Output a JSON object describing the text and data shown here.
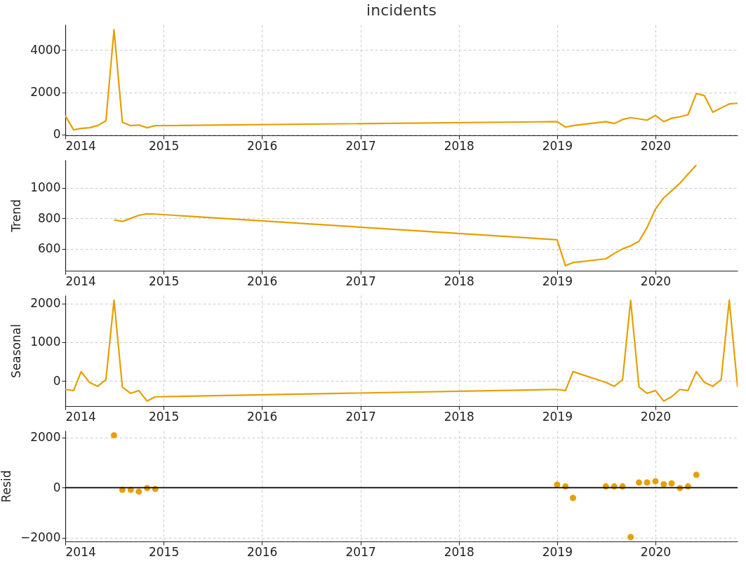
{
  "chart_data": [
    {
      "type": "line",
      "title": "incidents",
      "x": [
        "2014-01",
        "2014-02",
        "2014-03",
        "2014-04",
        "2014-05",
        "2014-06",
        "2014-07",
        "2014-08",
        "2014-09",
        "2014-10",
        "2014-11",
        "2014-12",
        "2019-01",
        "2019-02",
        "2019-03",
        "2019-07",
        "2019-08",
        "2019-09",
        "2019-10",
        "2019-11",
        "2019-12",
        "2020-01",
        "2020-02",
        "2020-03",
        "2020-04",
        "2020-05",
        "2020-06",
        "2020-07",
        "2020-08",
        "2020-09",
        "2020-10",
        "2020-11"
      ],
      "series": [
        {
          "color": "#e69f00",
          "values": [
            900,
            220,
            290,
            320,
            420,
            650,
            4970,
            580,
            420,
            450,
            320,
            420,
            610,
            350,
            420,
            610,
            520,
            710,
            800,
            740,
            680,
            900,
            610,
            770,
            840,
            940,
            1940,
            1840,
            1060,
            1260,
            1450,
            1480
          ]
        }
      ],
      "xlim": [
        "2014-01-01",
        "2020-11-01"
      ],
      "xticks": [
        "2014",
        "2015",
        "2016",
        "2017",
        "2018",
        "2019",
        "2020"
      ],
      "ylim": [
        -40,
        5210
      ],
      "yticks": [
        0,
        2000,
        4000
      ],
      "grid": true,
      "line_style": "solid"
    },
    {
      "type": "line",
      "ylabel": "Trend",
      "x": [
        "2014-07",
        "2014-08",
        "2014-09",
        "2014-10",
        "2014-11",
        "2014-12",
        "2019-01",
        "2019-02",
        "2019-03",
        "2019-07",
        "2019-08",
        "2019-09",
        "2019-10",
        "2019-11",
        "2019-12",
        "2020-01",
        "2020-02",
        "2020-03",
        "2020-04",
        "2020-05",
        "2020-06"
      ],
      "series": [
        {
          "color": "#e69f00",
          "values": [
            790,
            780,
            800,
            820,
            830,
            828,
            660,
            490,
            510,
            535,
            570,
            600,
            620,
            650,
            740,
            860,
            935,
            980,
            1030,
            1090,
            1150
          ]
        }
      ],
      "xlim": [
        "2014-01-01",
        "2020-11-01"
      ],
      "xticks": [
        "2014",
        "2015",
        "2016",
        "2017",
        "2018",
        "2019",
        "2020"
      ],
      "ylim": [
        457,
        1183
      ],
      "yticks": [
        600,
        800,
        1000
      ],
      "grid": true,
      "line_style": "solid"
    },
    {
      "type": "line",
      "ylabel": "Seasonal",
      "x": [
        "2014-01",
        "2014-02",
        "2014-03",
        "2014-04",
        "2014-05",
        "2014-06",
        "2014-07",
        "2014-08",
        "2014-09",
        "2014-10",
        "2014-11",
        "2014-12",
        "2019-01",
        "2019-02",
        "2019-03",
        "2019-07",
        "2019-08",
        "2019-09",
        "2019-10",
        "2019-11",
        "2019-12",
        "2020-01",
        "2020-02",
        "2020-03",
        "2020-04",
        "2020-05",
        "2020-06",
        "2020-07",
        "2020-08",
        "2020-09",
        "2020-10",
        "2020-11"
      ],
      "series": [
        {
          "color": "#e69f00",
          "values": [
            -220,
            -250,
            240,
            -40,
            -140,
            30,
            2080,
            -160,
            -320,
            -250,
            -520,
            -410,
            -220,
            -250,
            240,
            -40,
            -140,
            30,
            2080,
            -160,
            -320,
            -250,
            -520,
            -410,
            -220,
            -250,
            240,
            -40,
            -140,
            30,
            2080,
            -160
          ]
        }
      ],
      "xlim": [
        "2014-01-01",
        "2020-11-01"
      ],
      "xticks": [
        "2014",
        "2015",
        "2016",
        "2017",
        "2018",
        "2019",
        "2020"
      ],
      "ylim": [
        -650,
        2210
      ],
      "yticks": [
        0,
        1000,
        2000
      ],
      "grid": true,
      "line_style": "solid"
    },
    {
      "type": "scatter",
      "ylabel": "Resid",
      "x": [
        "2014-07",
        "2014-08",
        "2014-09",
        "2014-10",
        "2014-11",
        "2014-12",
        "2019-01",
        "2019-02",
        "2019-03",
        "2019-07",
        "2019-08",
        "2019-09",
        "2019-10",
        "2019-11",
        "2019-12",
        "2020-01",
        "2020-02",
        "2020-03",
        "2020-04",
        "2020-05",
        "2020-06"
      ],
      "series": [
        {
          "color": "#e69f00",
          "values": [
            2085,
            -85,
            -85,
            -155,
            -17,
            -50,
            120,
            50,
            -410,
            50,
            50,
            50,
            -1965,
            205,
            205,
            255,
            135,
            170,
            -17,
            50,
            510
          ]
        }
      ],
      "xlim": [
        "2014-01-01",
        "2020-11-01"
      ],
      "xticks": [
        "2014",
        "2015",
        "2016",
        "2017",
        "2018",
        "2019",
        "2020"
      ],
      "ylim": [
        -2140,
        2270
      ],
      "yticks": [
        -2000,
        0,
        2000
      ],
      "grid": true,
      "marker": "circle",
      "ref_lines": [
        {
          "axis": "y",
          "value": 0,
          "color": "#000000",
          "line_style": "solid"
        }
      ]
    }
  ]
}
